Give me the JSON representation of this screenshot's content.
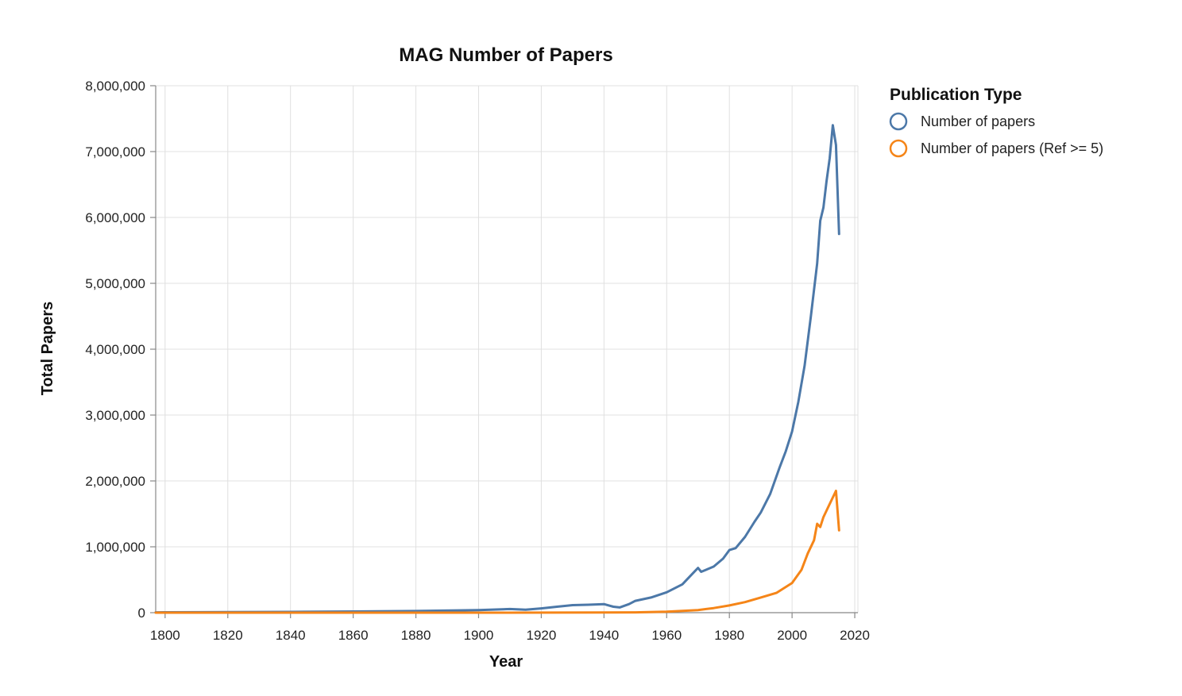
{
  "chart_data": {
    "type": "line",
    "title": "MAG Number of Papers",
    "xlabel": "Year",
    "ylabel": "Total Papers",
    "xlim": [
      1797,
      2021
    ],
    "ylim": [
      0,
      8000000
    ],
    "x_ticks": [
      1800,
      1820,
      1840,
      1860,
      1880,
      1900,
      1920,
      1940,
      1960,
      1980,
      2000,
      2020
    ],
    "y_ticks": [
      0,
      1000000,
      2000000,
      3000000,
      4000000,
      5000000,
      6000000,
      7000000,
      8000000
    ],
    "y_tick_labels": [
      "0",
      "1,000,000",
      "2,000,000",
      "3,000,000",
      "4,000,000",
      "5,000,000",
      "6,000,000",
      "7,000,000",
      "8,000,000"
    ],
    "grid": true,
    "legend": {
      "title": "Publication Type",
      "placement": "top-right"
    },
    "series": [
      {
        "name": "Number of papers",
        "color": "#4c78a8",
        "points": [
          [
            1797,
            5000
          ],
          [
            1800,
            6000
          ],
          [
            1820,
            8000
          ],
          [
            1840,
            12000
          ],
          [
            1860,
            18000
          ],
          [
            1880,
            25000
          ],
          [
            1900,
            40000
          ],
          [
            1910,
            55000
          ],
          [
            1915,
            45000
          ],
          [
            1920,
            65000
          ],
          [
            1925,
            90000
          ],
          [
            1930,
            115000
          ],
          [
            1935,
            120000
          ],
          [
            1940,
            130000
          ],
          [
            1943,
            90000
          ],
          [
            1945,
            80000
          ],
          [
            1948,
            130000
          ],
          [
            1950,
            180000
          ],
          [
            1955,
            230000
          ],
          [
            1960,
            310000
          ],
          [
            1965,
            430000
          ],
          [
            1969,
            630000
          ],
          [
            1970,
            680000
          ],
          [
            1971,
            620000
          ],
          [
            1975,
            700000
          ],
          [
            1978,
            820000
          ],
          [
            1980,
            950000
          ],
          [
            1982,
            980000
          ],
          [
            1985,
            1150000
          ],
          [
            1988,
            1380000
          ],
          [
            1990,
            1520000
          ],
          [
            1993,
            1800000
          ],
          [
            1996,
            2200000
          ],
          [
            1998,
            2450000
          ],
          [
            2000,
            2750000
          ],
          [
            2002,
            3200000
          ],
          [
            2004,
            3750000
          ],
          [
            2006,
            4500000
          ],
          [
            2008,
            5300000
          ],
          [
            2009,
            5950000
          ],
          [
            2010,
            6150000
          ],
          [
            2011,
            6550000
          ],
          [
            2012,
            6900000
          ],
          [
            2013,
            7400000
          ],
          [
            2014,
            7100000
          ],
          [
            2015,
            5750000
          ]
        ]
      },
      {
        "name": "Number of papers (Ref >= 5)",
        "color": "#f58518",
        "points": [
          [
            1797,
            0
          ],
          [
            1900,
            0
          ],
          [
            1940,
            2000
          ],
          [
            1950,
            5000
          ],
          [
            1960,
            15000
          ],
          [
            1970,
            40000
          ],
          [
            1975,
            70000
          ],
          [
            1980,
            110000
          ],
          [
            1985,
            160000
          ],
          [
            1990,
            230000
          ],
          [
            1995,
            300000
          ],
          [
            2000,
            450000
          ],
          [
            2003,
            650000
          ],
          [
            2005,
            900000
          ],
          [
            2007,
            1100000
          ],
          [
            2008,
            1350000
          ],
          [
            2009,
            1300000
          ],
          [
            2010,
            1450000
          ],
          [
            2012,
            1650000
          ],
          [
            2014,
            1850000
          ],
          [
            2015,
            1250000
          ]
        ]
      }
    ]
  }
}
